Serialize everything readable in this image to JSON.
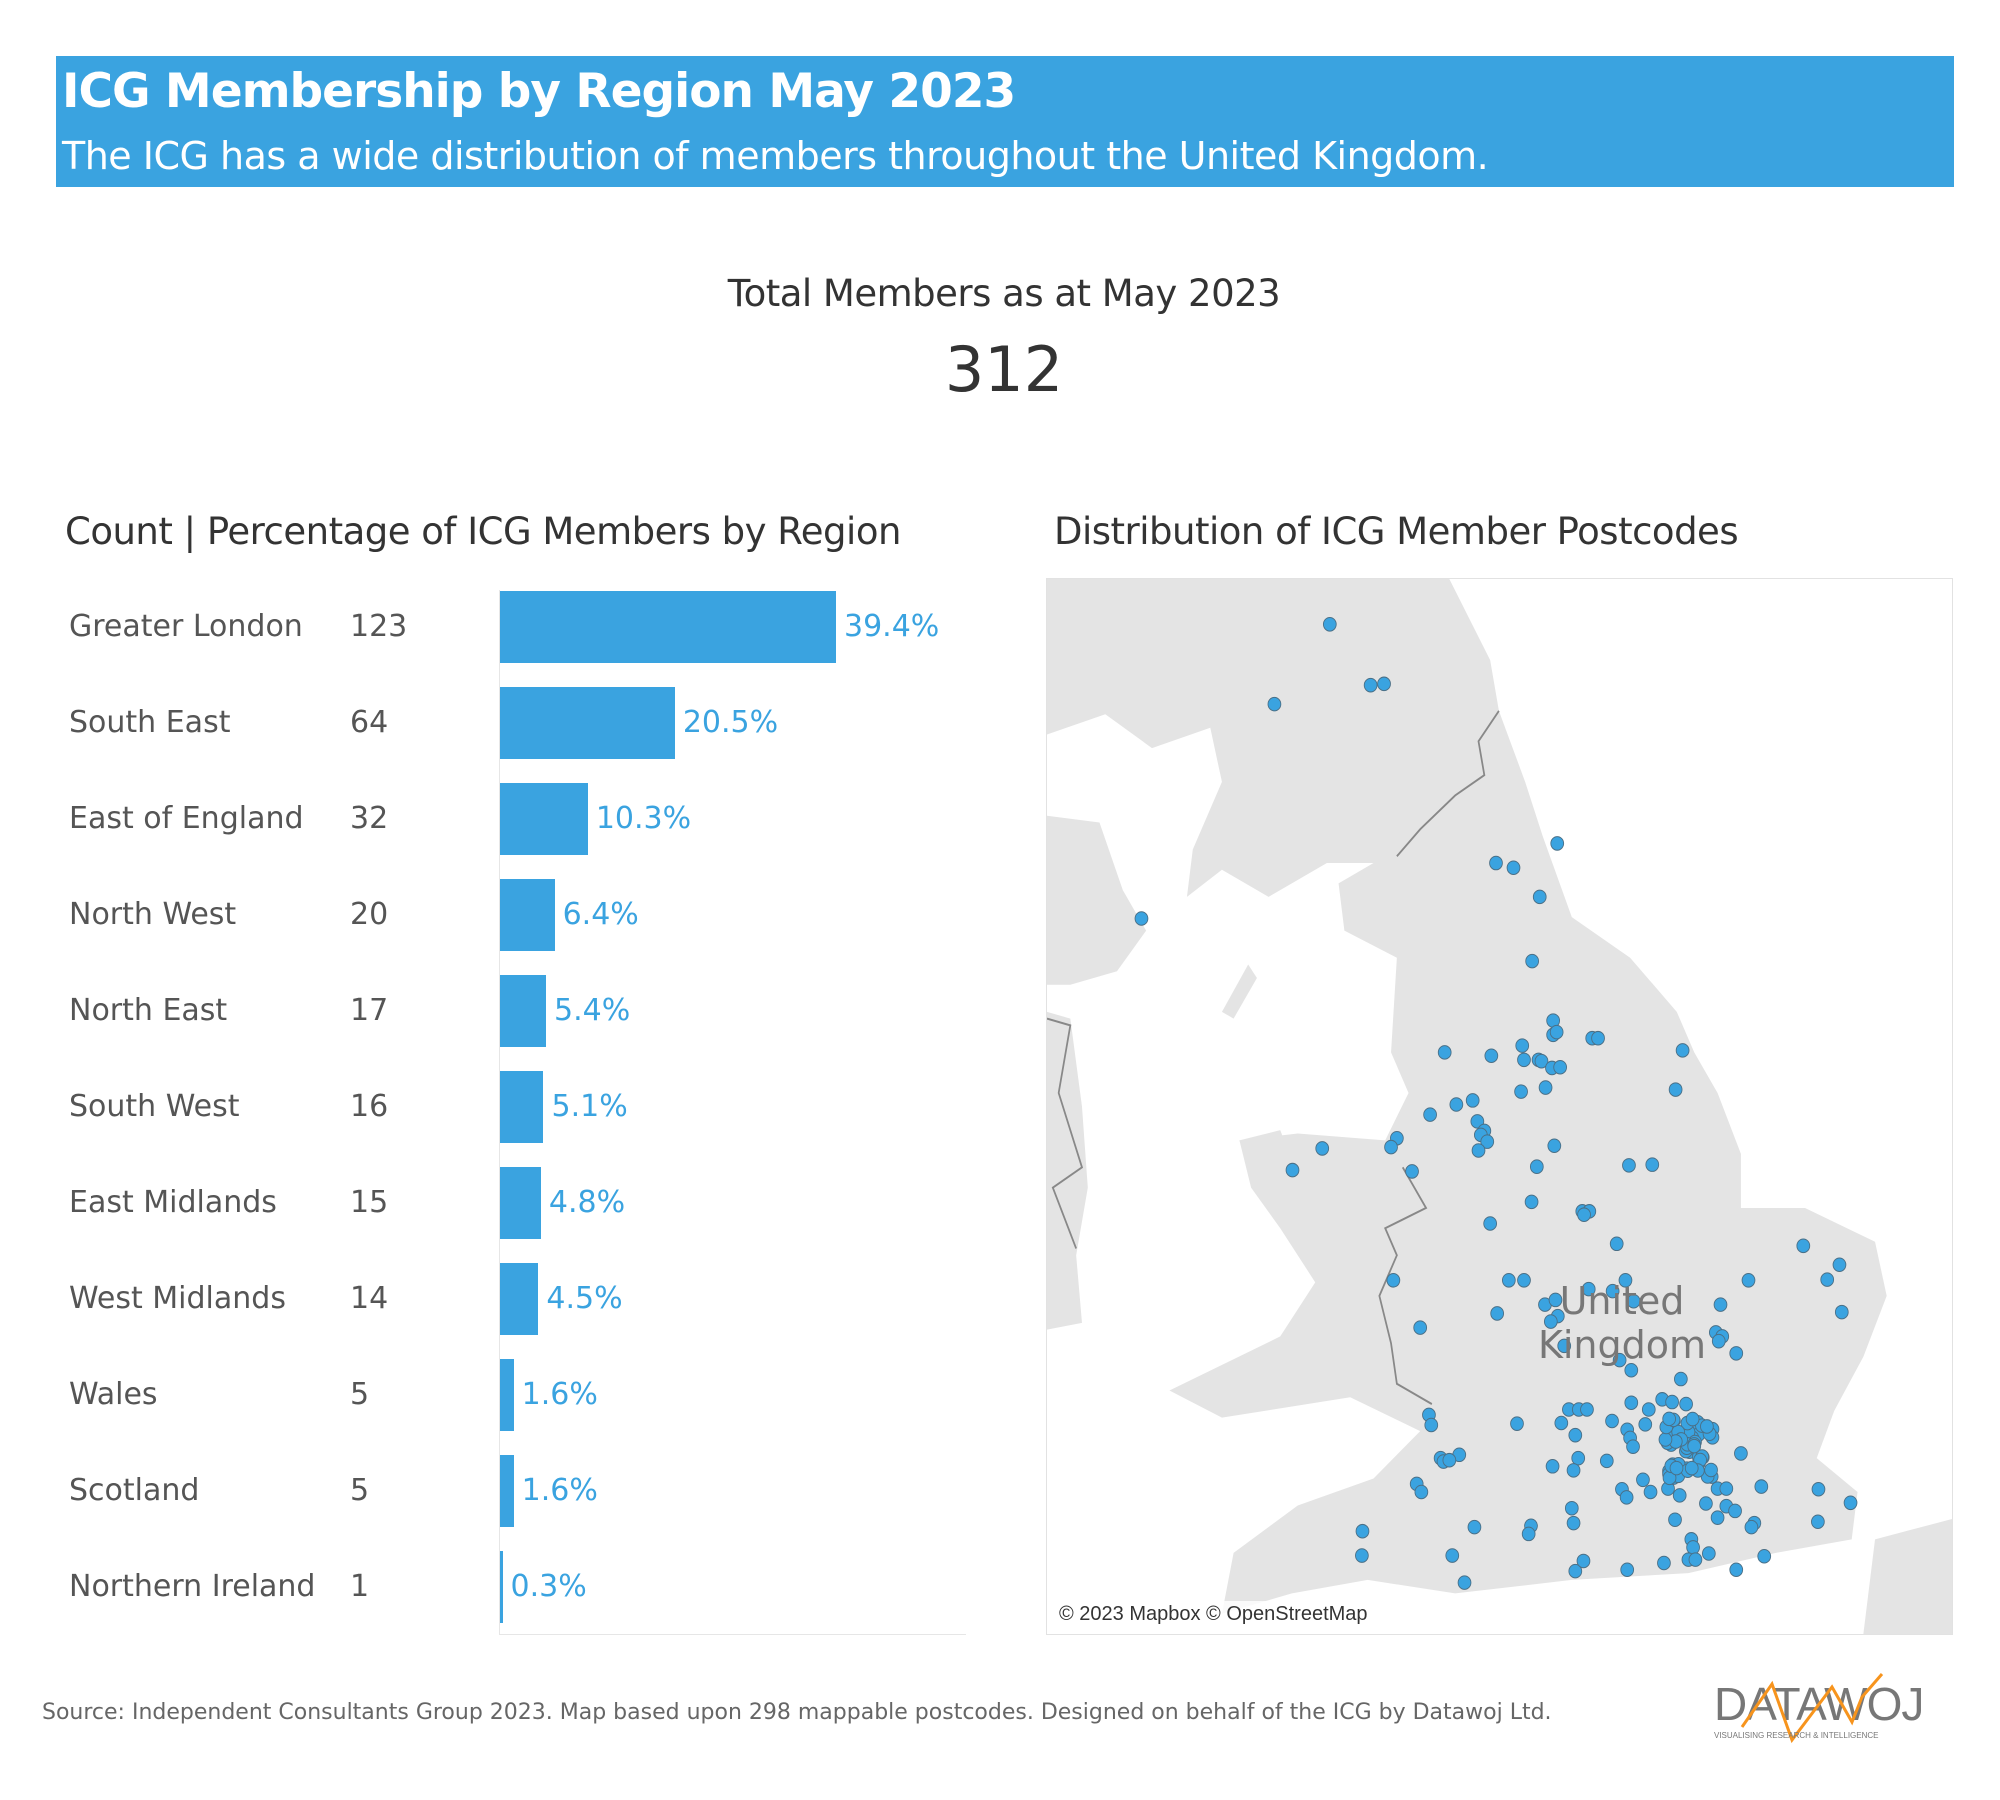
{
  "header": {
    "title": "ICG Membership by Region May 2023",
    "subtitle": "The ICG has a wide distribution of members throughout the United Kingdom."
  },
  "total": {
    "label": "Total Members as at May 2023",
    "value": "312"
  },
  "bar_section": {
    "title": "Count | Percentage of ICG Members by Region"
  },
  "map_section": {
    "title": "Distribution of ICG Member Postcodes",
    "country_label_line1": "United",
    "country_label_line2": "Kingdom",
    "attribution": "© 2023 Mapbox © OpenStreetMap"
  },
  "chart_data": {
    "type": "bar",
    "title": "Count | Percentage of ICG Members by Region",
    "categories": [
      "Greater London",
      "South East",
      "East of England",
      "North West",
      "North East",
      "South West",
      "East Midlands",
      "West Midlands",
      "Wales",
      "Scotland",
      "Northern Ireland"
    ],
    "counts": [
      123,
      64,
      32,
      20,
      17,
      16,
      15,
      14,
      5,
      5,
      1
    ],
    "values": [
      39.4,
      20.5,
      10.3,
      6.4,
      5.4,
      5.1,
      4.8,
      4.5,
      1.6,
      1.6,
      0.3
    ],
    "labels": [
      "39.4%",
      "20.5%",
      "10.3%",
      "6.4%",
      "5.4%",
      "5.1%",
      "4.8%",
      "4.5%",
      "1.6%",
      "1.6%",
      "0.3%"
    ],
    "unit": "%",
    "orientation": "horizontal",
    "color": "#3aa3e0"
  },
  "footer": {
    "source": "Source: Independent Consultants Group 2023.  Map based upon 298 mappable postcodes.  Designed on behalf of the ICG by Datawoj Ltd."
  },
  "logo": {
    "text": "DATAWOJ",
    "tagline": "VISUALISING RESEARCH & INTELLIGENCE",
    "colors": {
      "text": "#777777",
      "accent": "#f7941d"
    }
  },
  "colors": {
    "accent": "#3aa3e0",
    "land": "#e4e4e4",
    "sea": "#ffffff"
  }
}
